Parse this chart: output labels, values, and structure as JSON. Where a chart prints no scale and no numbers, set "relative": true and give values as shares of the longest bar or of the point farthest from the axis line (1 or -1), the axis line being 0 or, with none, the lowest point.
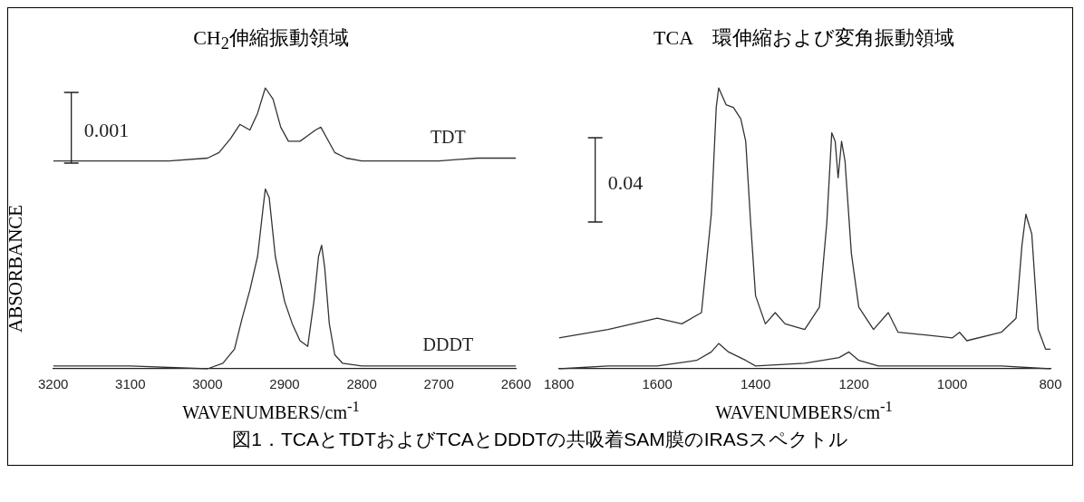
{
  "chart_data": [
    {
      "type": "line",
      "title": "CH$_{2}$伸縮振動領域",
      "xlabel": "WAVENUMBERS/cm$^{-1}$",
      "ylabel": "ABSORBANCE",
      "relative": true,
      "xlim": [
        3200,
        2600
      ],
      "xticks": [
        3200,
        3100,
        3000,
        2900,
        2800,
        2700,
        2600
      ],
      "tick_labels": "x",
      "grid": false,
      "legend": false,
      "marker": "none",
      "annotations": [
        "0.001"
      ],
      "series": [
        {
          "name": "TDT",
          "color": "#333333",
          "x": [
            3200,
            3150,
            3100,
            3050,
            3000,
            2985,
            2970,
            2958,
            2945,
            2935,
            2925,
            2915,
            2905,
            2895,
            2880,
            2870,
            2860,
            2853,
            2845,
            2835,
            2820,
            2800,
            2750,
            2700,
            2650,
            2600
          ],
          "values": [
            0.74,
            0.74,
            0.74,
            0.74,
            0.75,
            0.77,
            0.82,
            0.87,
            0.85,
            0.91,
            1,
            0.96,
            0.86,
            0.81,
            0.81,
            0.83,
            0.85,
            0.86,
            0.82,
            0.77,
            0.75,
            0.74,
            0.74,
            0.74,
            0.75,
            0.75
          ]
        },
        {
          "name": "DDDT",
          "color": "#333333",
          "x": [
            3200,
            3100,
            3000,
            2980,
            2965,
            2955,
            2945,
            2935,
            2928,
            2925,
            2920,
            2912,
            2900,
            2890,
            2880,
            2870,
            2862,
            2856,
            2852,
            2848,
            2842,
            2835,
            2825,
            2800,
            2700,
            2600
          ],
          "values": [
            0.01,
            0.01,
            0,
            0.02,
            0.07,
            0.18,
            0.28,
            0.4,
            0.57,
            0.64,
            0.61,
            0.4,
            0.24,
            0.16,
            0.1,
            0.08,
            0.24,
            0.4,
            0.44,
            0.36,
            0.16,
            0.05,
            0.02,
            0.01,
            0.01,
            0.01
          ]
        }
      ]
    },
    {
      "type": "line",
      "title": "TCA　環伸縮および変角振動領域",
      "xlabel": "WAVENUMBERS/cm$^{-1}$",
      "relative": true,
      "xlim": [
        1800,
        800
      ],
      "xticks": [
        1800,
        1600,
        1400,
        1200,
        1000,
        800
      ],
      "tick_labels": "x",
      "grid": false,
      "legend": false,
      "marker": "none",
      "annotations": [
        "0.04",
        "図1．TCAとTDTおよびTCAとDDDTの共吸着SAM膜のIRASスペクトル"
      ],
      "series": [
        {
          "color": "#333333",
          "x": [
            1800,
            1700,
            1600,
            1550,
            1510,
            1490,
            1480,
            1475,
            1460,
            1445,
            1430,
            1420,
            1410,
            1400,
            1380,
            1360,
            1340,
            1300,
            1270,
            1255,
            1245,
            1238,
            1232,
            1225,
            1218,
            1205,
            1190,
            1160,
            1130,
            1110,
            1050,
            1000,
            985,
            970,
            900,
            870,
            858,
            850,
            845,
            838,
            825,
            810,
            800
          ],
          "values": [
            0.11,
            0.14,
            0.18,
            0.16,
            0.2,
            0.55,
            0.93,
            1,
            0.94,
            0.93,
            0.89,
            0.81,
            0.52,
            0.26,
            0.16,
            0.2,
            0.16,
            0.14,
            0.22,
            0.52,
            0.84,
            0.81,
            0.68,
            0.81,
            0.74,
            0.41,
            0.22,
            0.14,
            0.2,
            0.13,
            0.12,
            0.11,
            0.13,
            0.1,
            0.13,
            0.18,
            0.44,
            0.55,
            0.52,
            0.48,
            0.14,
            0.07,
            0.07
          ]
        },
        {
          "color": "#333333",
          "x": [
            1800,
            1700,
            1600,
            1520,
            1490,
            1475,
            1455,
            1420,
            1400,
            1300,
            1230,
            1210,
            1190,
            1150,
            1000,
            900,
            800
          ],
          "values": [
            0,
            0.01,
            0.01,
            0.03,
            0.06,
            0.09,
            0.06,
            0.03,
            0.01,
            0.02,
            0.04,
            0.06,
            0.03,
            0.01,
            0.01,
            0.01,
            0
          ]
        }
      ]
    }
  ]
}
